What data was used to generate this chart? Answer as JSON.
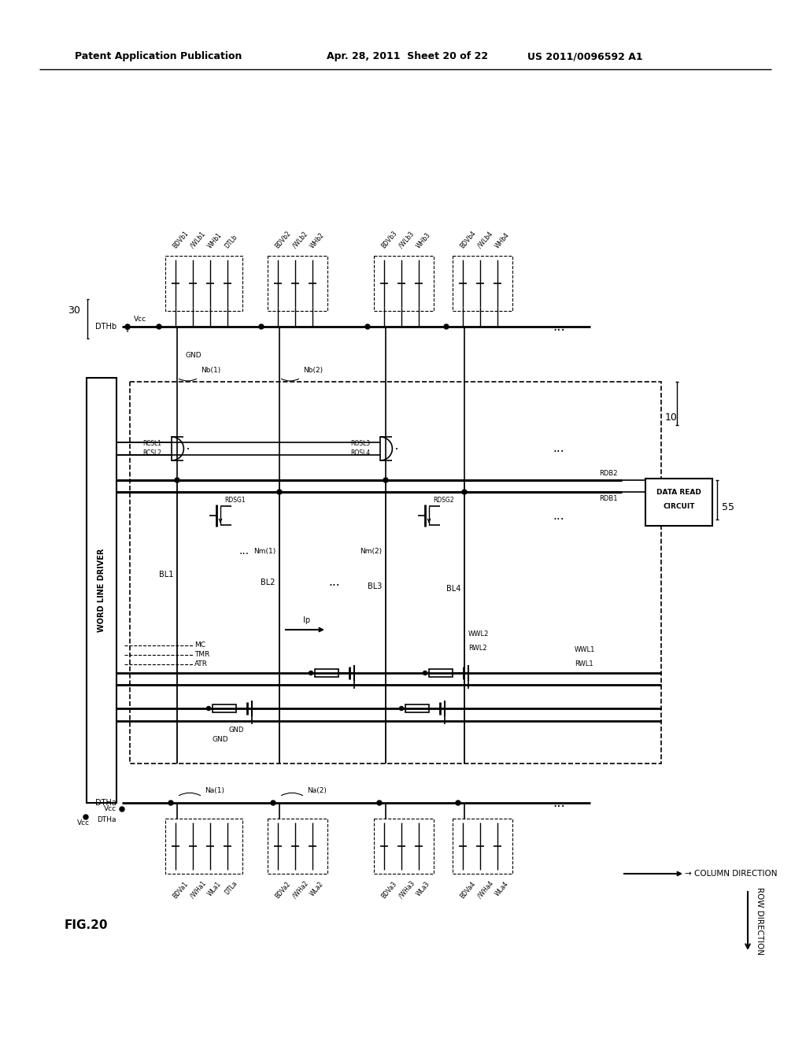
{
  "title_left": "Patent Application Publication",
  "title_mid": "Apr. 28, 2011  Sheet 20 of 22",
  "title_right": "US 2011/0096592 A1",
  "fig_label": "FIG.20",
  "background_color": "#ffffff",
  "line_color": "#000000",
  "text_color": "#000000"
}
